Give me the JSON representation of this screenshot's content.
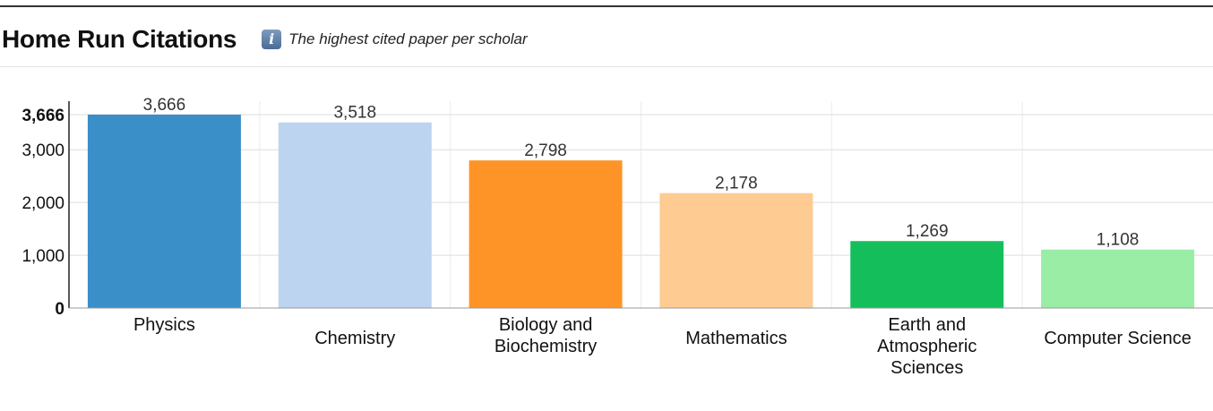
{
  "header": {
    "title": "Home Run Citations",
    "info_icon": "info-icon",
    "subtitle": "The highest cited paper per scholar"
  },
  "chart_data": {
    "type": "bar",
    "title": "Home Run Citations",
    "subtitle": "The highest cited paper per scholar",
    "xlabel": "",
    "ylabel": "",
    "ylim": [
      0,
      3666
    ],
    "yticks": [
      0,
      1000,
      2000,
      3000,
      3666
    ],
    "ytick_labels": [
      "0",
      "1,000",
      "2,000",
      "3,000",
      "3,666"
    ],
    "grid": true,
    "legend": "none",
    "categories": [
      [
        "Physics"
      ],
      [
        "Chemistry"
      ],
      [
        "Biology and",
        "Biochemistry"
      ],
      [
        "Mathematics"
      ],
      [
        "Earth and",
        "Atmospheric",
        "Sciences"
      ],
      [
        "Computer Science"
      ]
    ],
    "values": [
      3666,
      3518,
      2798,
      2178,
      1269,
      1108
    ],
    "value_labels": [
      "3,666",
      "3,518",
      "2,798",
      "2,178",
      "1,269",
      "1,108"
    ],
    "colors": [
      "#3a8fc9",
      "#bcd4ef",
      "#fe9428",
      "#fecb92",
      "#14bf5b",
      "#9aeda4"
    ]
  }
}
